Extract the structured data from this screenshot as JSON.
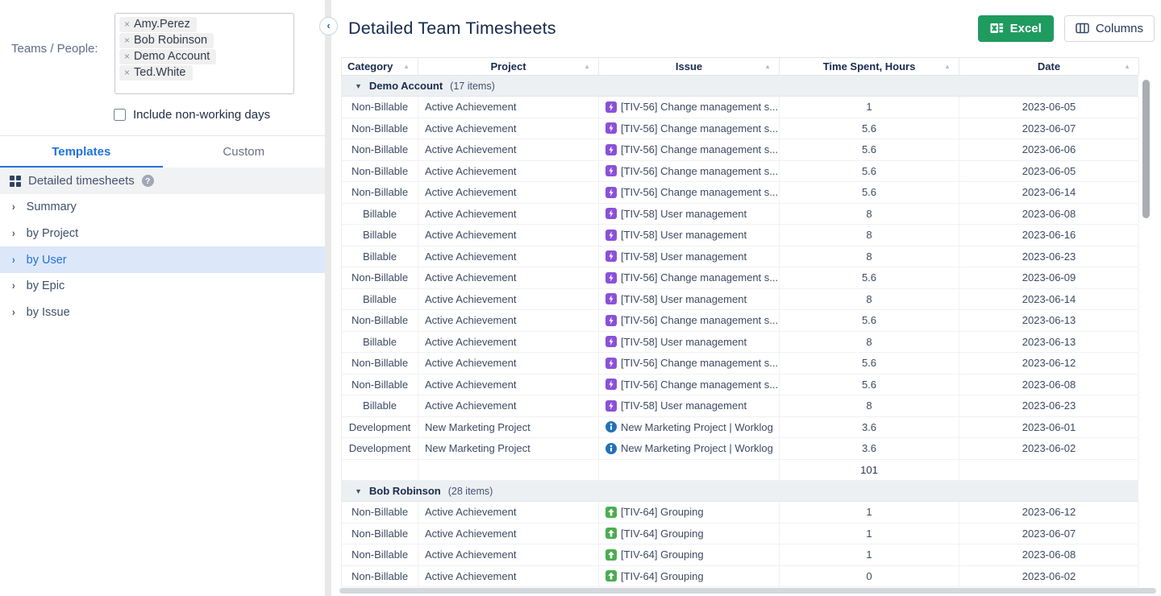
{
  "sidebar": {
    "teams_label": "Teams / People:",
    "selected_people": [
      "Amy.Perez",
      "Bob Robinson",
      "Demo Account",
      "Ted.White"
    ],
    "include_label": "Include non-working days",
    "include_checked": false,
    "tabs": [
      {
        "label": "Templates",
        "active": true
      },
      {
        "label": "Custom",
        "active": false
      }
    ],
    "template_group_label": "Detailed timesheets",
    "items": [
      {
        "label": "Summary",
        "active": false
      },
      {
        "label": "by Project",
        "active": false
      },
      {
        "label": "by User",
        "active": true
      },
      {
        "label": "by Epic",
        "active": false
      },
      {
        "label": "by Issue",
        "active": false
      }
    ]
  },
  "header": {
    "title": "Detailed Team Timesheets",
    "excel_button": "Excel",
    "columns_button": "Columns"
  },
  "table": {
    "columns": [
      "Category",
      "Project",
      "Issue",
      "Time Spent, Hours",
      "Date"
    ],
    "groups": [
      {
        "name": "Demo Account",
        "count_label": "(17 items)",
        "subtotal": "101",
        "rows": [
          {
            "category": "Non-Billable",
            "project": "Active Achievement",
            "issue": "[TIV-56] Change management s...",
            "icon": "epic",
            "time": "1",
            "date": "2023-06-05"
          },
          {
            "category": "Non-Billable",
            "project": "Active Achievement",
            "issue": "[TIV-56] Change management s...",
            "icon": "epic",
            "time": "5.6",
            "date": "2023-06-07"
          },
          {
            "category": "Non-Billable",
            "project": "Active Achievement",
            "issue": "[TIV-56] Change management s...",
            "icon": "epic",
            "time": "5.6",
            "date": "2023-06-06"
          },
          {
            "category": "Non-Billable",
            "project": "Active Achievement",
            "issue": "[TIV-56] Change management s...",
            "icon": "epic",
            "time": "5.6",
            "date": "2023-06-05"
          },
          {
            "category": "Non-Billable",
            "project": "Active Achievement",
            "issue": "[TIV-56] Change management s...",
            "icon": "epic",
            "time": "5.6",
            "date": "2023-06-14"
          },
          {
            "category": "Billable",
            "project": "Active Achievement",
            "issue": "[TIV-58] User management",
            "icon": "epic",
            "time": "8",
            "date": "2023-06-08"
          },
          {
            "category": "Billable",
            "project": "Active Achievement",
            "issue": "[TIV-58] User management",
            "icon": "epic",
            "time": "8",
            "date": "2023-06-16"
          },
          {
            "category": "Billable",
            "project": "Active Achievement",
            "issue": "[TIV-58] User management",
            "icon": "epic",
            "time": "8",
            "date": "2023-06-23"
          },
          {
            "category": "Non-Billable",
            "project": "Active Achievement",
            "issue": "[TIV-56] Change management s...",
            "icon": "epic",
            "time": "5.6",
            "date": "2023-06-09"
          },
          {
            "category": "Billable",
            "project": "Active Achievement",
            "issue": "[TIV-58] User management",
            "icon": "epic",
            "time": "8",
            "date": "2023-06-14"
          },
          {
            "category": "Non-Billable",
            "project": "Active Achievement",
            "issue": "[TIV-56] Change management s...",
            "icon": "epic",
            "time": "5.6",
            "date": "2023-06-13"
          },
          {
            "category": "Billable",
            "project": "Active Achievement",
            "issue": "[TIV-58] User management",
            "icon": "epic",
            "time": "8",
            "date": "2023-06-13"
          },
          {
            "category": "Non-Billable",
            "project": "Active Achievement",
            "issue": "[TIV-56] Change management s...",
            "icon": "epic",
            "time": "5.6",
            "date": "2023-06-12"
          },
          {
            "category": "Non-Billable",
            "project": "Active Achievement",
            "issue": "[TIV-56] Change management s...",
            "icon": "epic",
            "time": "5.6",
            "date": "2023-06-08"
          },
          {
            "category": "Billable",
            "project": "Active Achievement",
            "issue": "[TIV-58] User management",
            "icon": "epic",
            "time": "8",
            "date": "2023-06-23"
          },
          {
            "category": "Development",
            "project": "New Marketing Project",
            "issue": "New Marketing Project | Worklog",
            "icon": "worklog",
            "time": "3.6",
            "date": "2023-06-01"
          },
          {
            "category": "Development",
            "project": "New Marketing Project",
            "issue": "New Marketing Project | Worklog",
            "icon": "worklog",
            "time": "3.6",
            "date": "2023-06-02"
          }
        ]
      },
      {
        "name": "Bob Robinson",
        "count_label": "(28 items)",
        "rows": [
          {
            "category": "Non-Billable",
            "project": "Active Achievement",
            "issue": "[TIV-64] Grouping",
            "icon": "improvement",
            "time": "1",
            "date": "2023-06-12"
          },
          {
            "category": "Non-Billable",
            "project": "Active Achievement",
            "issue": "[TIV-64] Grouping",
            "icon": "improvement",
            "time": "1",
            "date": "2023-06-07"
          },
          {
            "category": "Non-Billable",
            "project": "Active Achievement",
            "issue": "[TIV-64] Grouping",
            "icon": "improvement",
            "time": "1",
            "date": "2023-06-08"
          },
          {
            "category": "Non-Billable",
            "project": "Active Achievement",
            "issue": "[TIV-64] Grouping",
            "icon": "improvement",
            "time": "0",
            "date": "2023-06-02"
          }
        ]
      }
    ]
  },
  "colors": {
    "accent_blue": "#2172e2",
    "active_item_blue": "#2470d6",
    "excel_green": "#1f9b60",
    "epic_purple": "#8b50d8",
    "improvement_green": "#4cad50",
    "worklog_blue": "#2272b8"
  }
}
